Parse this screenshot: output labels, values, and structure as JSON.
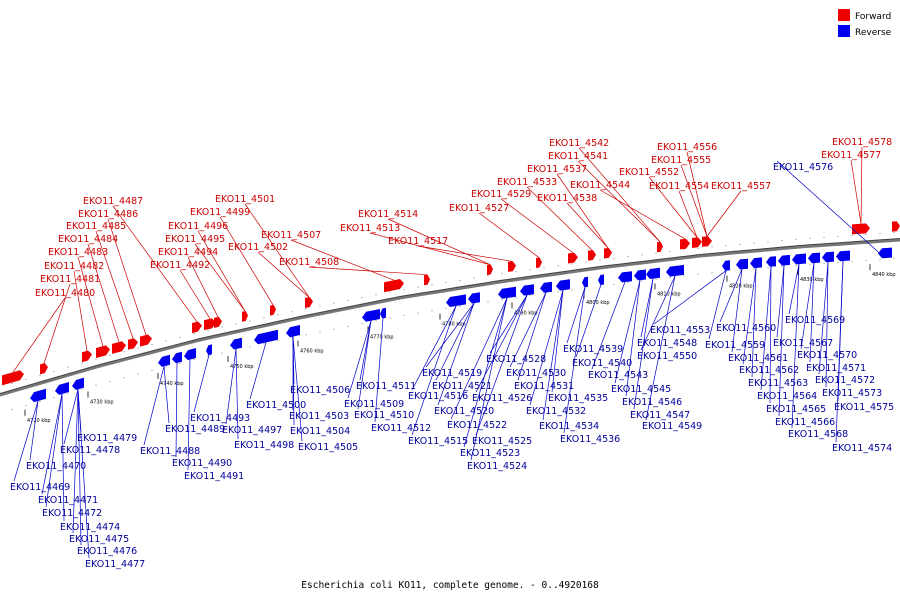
{
  "caption": "Escherichia coli KO11, complete genome. - 0..4920168",
  "legend": {
    "items": [
      {
        "label": "Forward",
        "color": "#ee0000"
      },
      {
        "label": "Reverse",
        "color": "#0000ee"
      }
    ]
  },
  "scale": {
    "ticks": [
      "4720 kbp",
      "4730 kbp",
      "4740 kbp",
      "4750 kbp",
      "4760 kbp",
      "4770 kbp",
      "4780 kbp",
      "4790 kbp",
      "4800 kbp",
      "4810 kbp",
      "4820 kbp",
      "4830 kbp",
      "4840 kbp"
    ]
  },
  "forward_labels": [
    "EKO11_4480",
    "EKO11_4481",
    "EKO11_4482",
    "EKO11_4483",
    "EKO11_4484",
    "EKO11_4485",
    "EKO11_4486",
    "EKO11_4487",
    "EKO11_4492",
    "EKO11_4494",
    "EKO11_4495",
    "EKO11_4496",
    "EKO11_4499",
    "EKO11_4501",
    "EKO11_4502",
    "EKO11_4507",
    "EKO11_4508",
    "EKO11_4513",
    "EKO11_4514",
    "EKO11_4517",
    "EKO11_4527",
    "EKO11_4529",
    "EKO11_4533",
    "EKO11_4537",
    "EKO11_4538",
    "EKO11_4541",
    "EKO11_4542",
    "EKO11_4544",
    "EKO11_4552",
    "EKO11_4554",
    "EKO11_4555",
    "EKO11_4556",
    "EKO11_4557",
    "EKO11_4577",
    "EKO11_4578"
  ],
  "reverse_labels": [
    "EKO11_4469",
    "EKO11_4470",
    "EKO11_4471",
    "EKO11_4472",
    "EKO11_4474",
    "EKO11_4475",
    "EKO11_4476",
    "EKO11_4477",
    "EKO11_4478",
    "EKO11_4479",
    "EKO11_4488",
    "EKO11_4489",
    "EKO11_4490",
    "EKO11_4491",
    "EKO11_4493",
    "EKO11_4497",
    "EKO11_4498",
    "EKO11_4500",
    "EKO11_4503",
    "EKO11_4504",
    "EKO11_4505",
    "EKO11_4506",
    "EKO11_4509",
    "EKO11_4510",
    "EKO11_4511",
    "EKO11_4512",
    "EKO11_4515",
    "EKO11_4516",
    "EKO11_4519",
    "EKO11_4520",
    "EKO11_4521",
    "EKO11_4522",
    "EKO11_4523",
    "EKO11_4524",
    "EKO11_4525",
    "EKO11_4526",
    "EKO11_4528",
    "EKO11_4530",
    "EKO11_4531",
    "EKO11_4532",
    "EKO11_4534",
    "EKO11_4535",
    "EKO11_4536",
    "EKO11_4539",
    "EKO11_4540",
    "EKO11_4543",
    "EKO11_4545",
    "EKO11_4546",
    "EKO11_4547",
    "EKO11_4548",
    "EKO11_4549",
    "EKO11_4550",
    "EKO11_4553",
    "EKO11_4559",
    "EKO11_4560",
    "EKO11_4561",
    "EKO11_4562",
    "EKO11_4563",
    "EKO11_4564",
    "EKO11_4565",
    "EKO11_4566",
    "EKO11_4567",
    "EKO11_4568",
    "EKO11_4569",
    "EKO11_4570",
    "EKO11_4571",
    "EKO11_4572",
    "EKO11_4573",
    "EKO11_4574",
    "EKO11_4575",
    "EKO11_4576"
  ]
}
